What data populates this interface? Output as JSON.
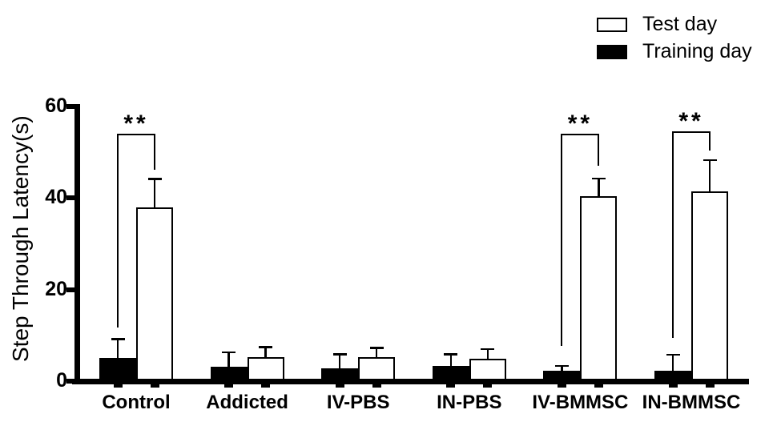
{
  "chart_data": {
    "type": "bar",
    "title": "",
    "xlabel": "",
    "ylabel": "Step Through Latency(s)",
    "ylim": [
      0,
      60
    ],
    "yticks": [
      0,
      20,
      40,
      60
    ],
    "grid": false,
    "legend_position": "top-right",
    "background_color": "#ffffff",
    "axis_color": "#000000",
    "categories": [
      "Control",
      "Addicted",
      "IV-PBS",
      "IN-PBS",
      "IV-BMMSC",
      "IN-BMMSC"
    ],
    "series": [
      {
        "name": "Test day",
        "fill": "#ffffff",
        "border": "#000000",
        "position_in_group": "right",
        "values": [
          38.0,
          5.3,
          5.2,
          4.9,
          40.4,
          41.5
        ],
        "errors": [
          6.2,
          2.2,
          2.1,
          2.1,
          3.9,
          6.8
        ]
      },
      {
        "name": "Training day",
        "fill": "#000000",
        "border": "#000000",
        "position_in_group": "left",
        "values": [
          5.0,
          3.1,
          2.8,
          3.3,
          2.3,
          2.3
        ],
        "errors": [
          4.2,
          3.2,
          3.1,
          2.6,
          1.1,
          3.5
        ]
      }
    ],
    "error_bar_style": "upper-only-with-cap",
    "significance": [
      {
        "group": "Control",
        "label": "**",
        "top": 54.1,
        "left_drop_to": 11.7,
        "right_drop_to": 46.2
      },
      {
        "group": "IV-BMMSC",
        "label": "**",
        "top": 54.1,
        "left_drop_to": 7.7,
        "right_drop_to": 47.0
      },
      {
        "group": "IN-BMMSC",
        "label": "**",
        "top": 54.6,
        "left_drop_to": 9.4,
        "right_drop_to": 50.3
      }
    ]
  }
}
